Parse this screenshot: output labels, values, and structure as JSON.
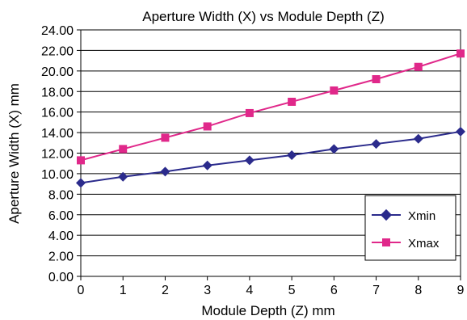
{
  "chart_data": {
    "type": "line",
    "title": "Aperture Width (X) vs Module Depth (Z)",
    "xlabel": "Module Depth (Z) mm",
    "ylabel": "Aperture Width (X) mm",
    "x": [
      0,
      1,
      2,
      3,
      4,
      5,
      6,
      7,
      8,
      9
    ],
    "xlim": [
      0,
      9
    ],
    "ylim": [
      0,
      24
    ],
    "y_ticks": [
      "0.00",
      "2.00",
      "4.00",
      "6.00",
      "8.00",
      "10.00",
      "12.00",
      "14.00",
      "16.00",
      "18.00",
      "20.00",
      "22.00",
      "24.00"
    ],
    "x_ticks": [
      "0",
      "1",
      "2",
      "3",
      "4",
      "5",
      "6",
      "7",
      "8",
      "9"
    ],
    "grid": "horizontal",
    "legend_position": "bottom-right",
    "series": [
      {
        "name": "Xmin",
        "marker": "diamond",
        "color": "#2b2b8c",
        "values": [
          9.1,
          9.7,
          10.2,
          10.8,
          11.3,
          11.8,
          12.4,
          12.9,
          13.4,
          14.1
        ]
      },
      {
        "name": "Xmax",
        "marker": "square",
        "color": "#e0288a",
        "values": [
          11.3,
          12.4,
          13.5,
          14.6,
          15.9,
          17.0,
          18.1,
          19.2,
          20.4,
          21.7
        ]
      }
    ]
  }
}
